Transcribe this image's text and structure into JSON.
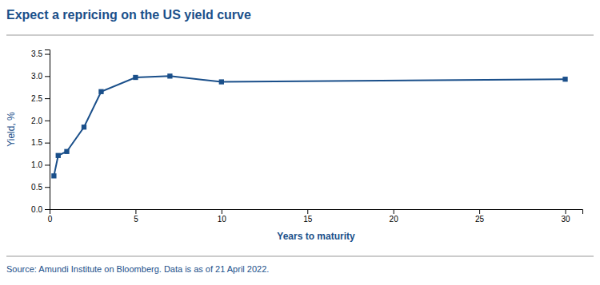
{
  "chart_data": {
    "type": "line",
    "title": "Expect a repricing on the US yield curve",
    "xlabel": "Years to maturity",
    "ylabel": "Yield, %",
    "source": "Source: Amundi Institute on Bloomberg. Data is as of 21 April 2022.",
    "x": [
      0.25,
      0.5,
      1,
      2,
      3,
      5,
      7,
      10,
      30
    ],
    "y": [
      0.75,
      1.21,
      1.3,
      1.85,
      2.65,
      2.97,
      3.0,
      2.87,
      2.93
    ],
    "color": "#1a4f8a",
    "marker": "square",
    "xlim": [
      0,
      31
    ],
    "ylim": [
      0,
      3.6
    ],
    "xticks": [
      0,
      5,
      10,
      15,
      20,
      25,
      30
    ],
    "yticks": [
      {
        "value": 0.0,
        "label": "0.0"
      },
      0.5,
      {
        "value": 1.0,
        "label": "1.0"
      },
      1.5,
      {
        "value": 2.0,
        "label": "2.0"
      },
      2.5,
      {
        "value": 3.0,
        "label": "3.0"
      },
      3.5
    ],
    "grid": false
  }
}
